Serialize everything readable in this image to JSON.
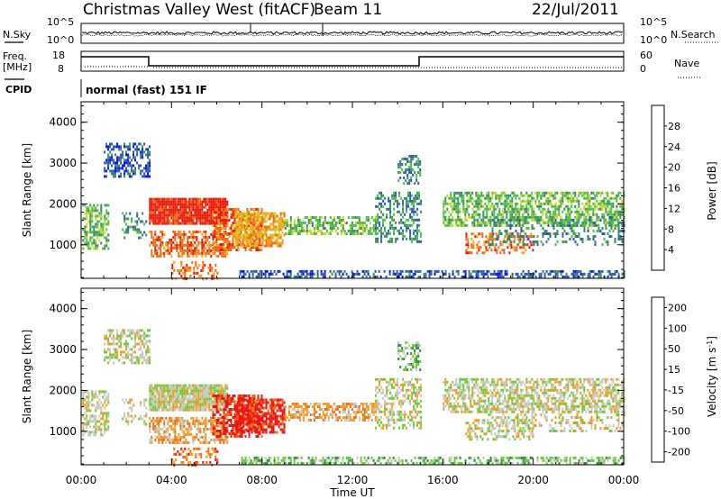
{
  "header": {
    "station": "Christmas Valley West (fitACF)",
    "beam": "Beam 11",
    "date": "22/Jul/2011"
  },
  "strips": {
    "nsky_label": "N.Sky",
    "nsky_ticks": [
      "10^5",
      "10^0"
    ],
    "nsearch_label": "N.Search",
    "nsearch_ticks": [
      "10^5",
      "10^0"
    ],
    "freq_label": "Freq.",
    "freq_unit": "[MHz]",
    "freq_ticks": [
      "18",
      "8"
    ],
    "nave_label": "Nave",
    "nave_ticks": [
      "60",
      "0"
    ],
    "cpid_label": "CPID",
    "cpid_text": "normal (fast) 151 IF"
  },
  "chart_data": [
    {
      "type": "heatmap",
      "panel": "power",
      "ylabel": "Slant Range [km]",
      "y_ticks": [
        "1000",
        "2000",
        "3000",
        "4000"
      ],
      "colorbar_label": "Power [dB]",
      "colorbar_ticks": [
        "4",
        "8",
        "12",
        "16",
        "20",
        "24",
        "28"
      ],
      "colors": [
        "#0a10e8",
        "#2f55b8",
        "#3a8a62",
        "#4cbf45",
        "#c8d624",
        "#f5a21e",
        "#f06a10",
        "#e8180e"
      ],
      "xlim": [
        "00:00",
        "00:00"
      ],
      "ylim": [
        180,
        4500
      ]
    },
    {
      "type": "heatmap",
      "panel": "velocity",
      "ylabel": "Slant Range [km]",
      "y_ticks": [
        "1000",
        "2000",
        "3000",
        "4000"
      ],
      "colorbar_label": "Velocity [m s",
      "colorbar_label_sup": "-1",
      "colorbar_label_end": "]",
      "colorbar_ticks": [
        "200",
        "100",
        "50",
        "15",
        "-15",
        "-50",
        "-100",
        "-200"
      ],
      "colors": [
        "#1830b8",
        "#2e64a8",
        "#2f8a48",
        "#66cc33",
        "#c8c8c2",
        "#f09a22",
        "#f06a12",
        "#e81616"
      ],
      "xlim": [
        "00:00",
        "00:00"
      ],
      "ylim": [
        180,
        4500
      ]
    }
  ],
  "x_axis": {
    "label": "Time UT",
    "ticks": [
      "00:00",
      "04:00",
      "08:00",
      "12:00",
      "16:00",
      "20:00",
      "00:00"
    ]
  }
}
